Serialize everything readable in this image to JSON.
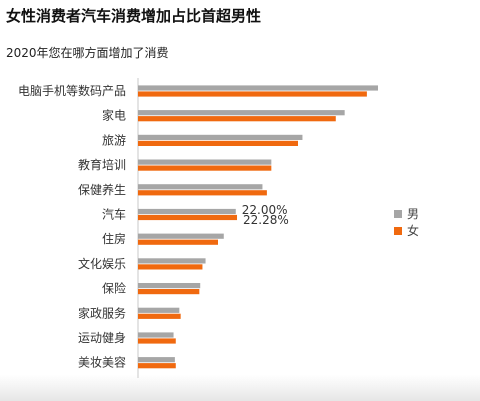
{
  "title": "女性消费者汽车消费增加占比首超男性",
  "subtitle": "2020年您在哪方面增加了消费",
  "colors": {
    "male": "#a6a6a6",
    "female": "#f0690f"
  },
  "chart_data": {
    "type": "bar",
    "orientation": "horizontal",
    "categories": [
      "电脑手机等数码产品",
      "家电",
      "旅游",
      "教育培训",
      "保健养生",
      "汽车",
      "住房",
      "文化娱乐",
      "保险",
      "家政服务",
      "运动健身",
      "美妆美容"
    ],
    "series": [
      {
        "name": "男",
        "values": [
          54.0,
          46.5,
          37.0,
          30.0,
          28.0,
          22.0,
          19.3,
          15.2,
          14.0,
          9.3,
          8.0,
          8.3
        ]
      },
      {
        "name": "女",
        "values": [
          51.5,
          44.5,
          36.0,
          30.0,
          29.0,
          22.28,
          18.0,
          14.5,
          13.8,
          9.6,
          8.5,
          8.5
        ]
      }
    ],
    "data_labels": [
      {
        "category": "汽车",
        "series": "男",
        "text": "22.00%"
      },
      {
        "category": "汽车",
        "series": "女",
        "text": "22.28%"
      }
    ],
    "legend": {
      "position": "right",
      "entries": [
        "男",
        "女"
      ]
    },
    "xlim": [
      0,
      54
    ],
    "grid": false
  }
}
